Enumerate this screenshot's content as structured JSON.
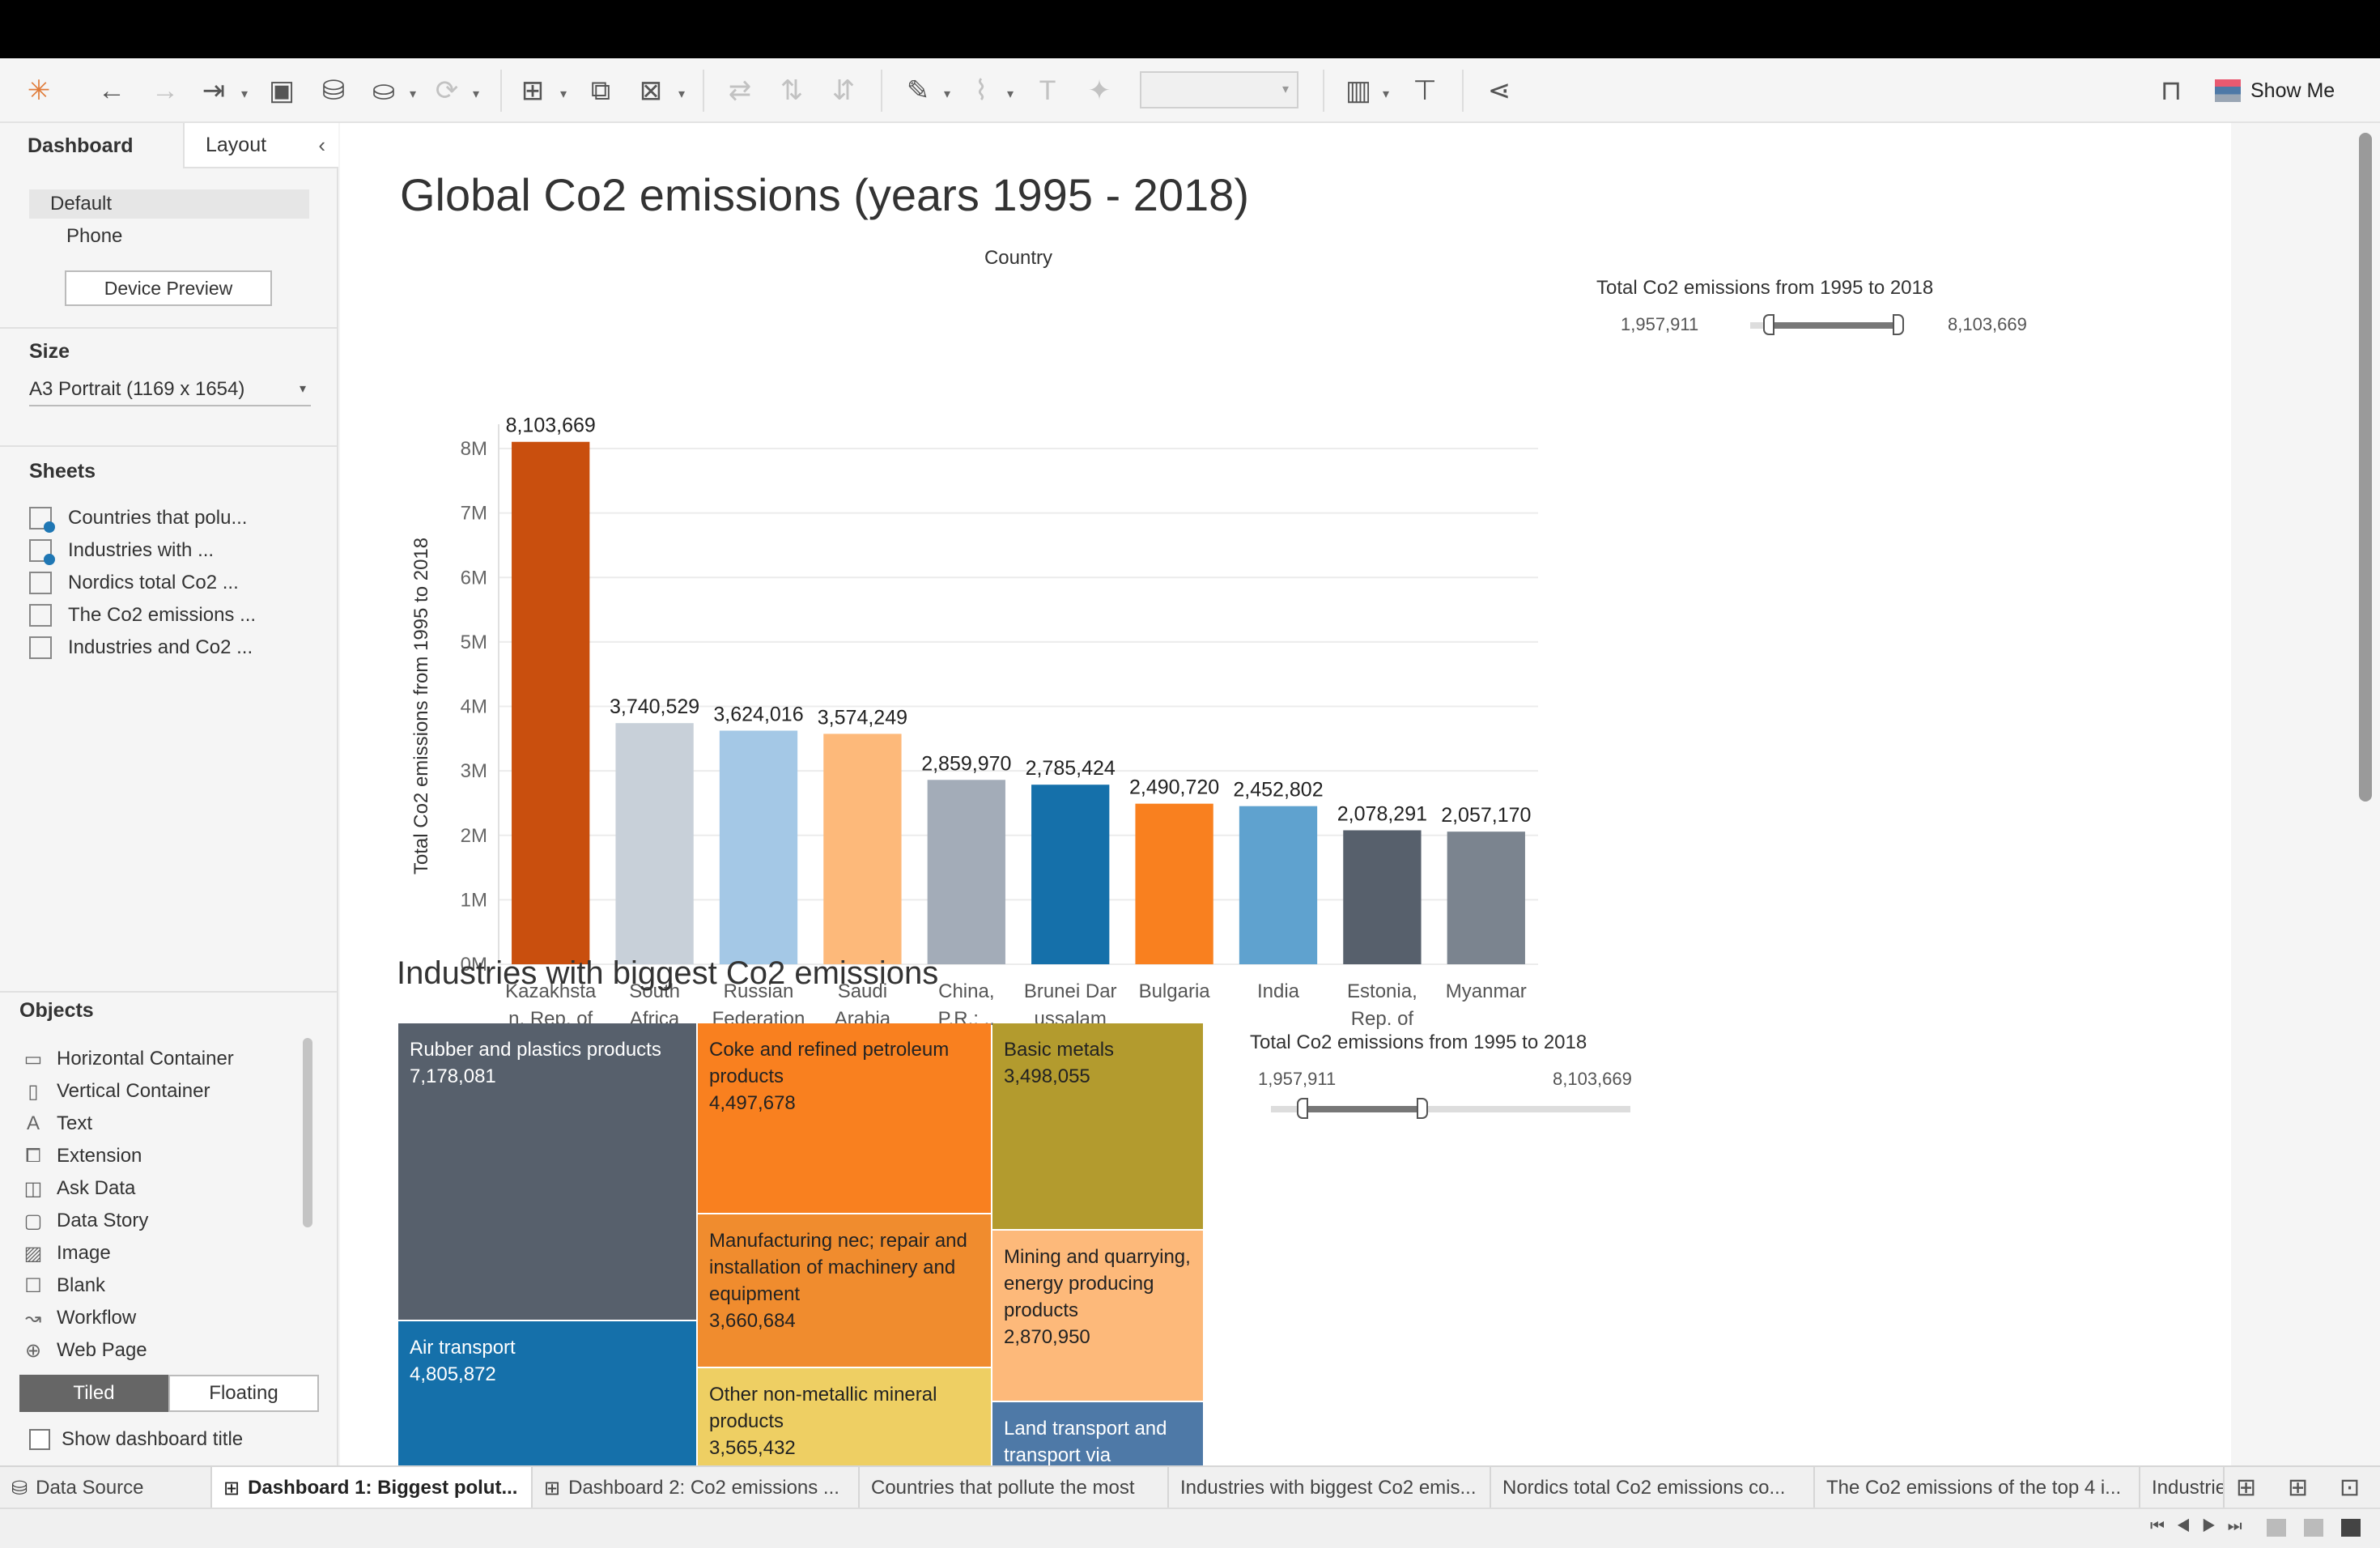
{
  "toolbar": {
    "show_me": "Show Me"
  },
  "sidebar": {
    "tabs": [
      "Dashboard",
      "Layout"
    ],
    "devices": [
      "Default",
      "Phone"
    ],
    "device_preview": "Device Preview",
    "size_label": "Size",
    "size_value": "A3 Portrait (1169 x 1654)",
    "sheets_label": "Sheets",
    "sheets": [
      "Countries that polu...",
      "Industries with ...",
      "Nordics total Co2 ...",
      "The Co2 emissions ...",
      "Industries and Co2 ..."
    ],
    "objects_label": "Objects",
    "objects": [
      "Horizontal Container",
      "Vertical Container",
      "Text",
      "Extension",
      "Ask Data",
      "Data Story",
      "Image",
      "Blank",
      "Workflow",
      "Web Page"
    ],
    "tiled": "Tiled",
    "floating": "Floating",
    "show_title": "Show dashboard title"
  },
  "dashboard": {
    "title": "Global Co2 emissions (years 1995 - 2018)",
    "subtitle": "Industries with biggest Co2 emissions"
  },
  "chart_data": [
    {
      "type": "bar",
      "title": "Country",
      "ylabel": "Total  Co2 emissions from 1995 to 2018",
      "categories": [
        [
          "Kazakhsta",
          "n, Rep. of"
        ],
        [
          "South",
          "Africa"
        ],
        [
          "Russian",
          "Federation"
        ],
        [
          "Saudi",
          "Arabia"
        ],
        [
          "China,",
          "P.R.: .."
        ],
        [
          "Brunei Dar",
          "ussalam"
        ],
        [
          "Bulgaria"
        ],
        [
          "India"
        ],
        [
          "Estonia,",
          "Rep. of"
        ],
        [
          "Myanmar"
        ]
      ],
      "values": [
        8103669,
        3740529,
        3624016,
        3574249,
        2859970,
        2785424,
        2490720,
        2452802,
        2078291,
        2057170
      ],
      "value_labels": [
        "8,103,669",
        "3,740,529",
        "3,624,016",
        "3,574,249",
        "2,859,970",
        "2,785,424",
        "2,490,720",
        "2,452,802",
        "2,078,291",
        "2,057,170"
      ],
      "colors": [
        "#c94f0e",
        "#c8d0d9",
        "#a4c8e6",
        "#fdb97a",
        "#a3acb8",
        "#1570aa",
        "#f9801f",
        "#5fa2cf",
        "#57606c",
        "#7b848f"
      ],
      "yticks": [
        "0M",
        "1M",
        "2M",
        "3M",
        "4M",
        "5M",
        "6M",
        "7M",
        "8M"
      ],
      "ylim": [
        0,
        8000000
      ],
      "grid": true
    },
    {
      "type": "treemap",
      "items": [
        {
          "name": "Rubber and plastics products",
          "value": "7,178,081",
          "color": "#57606c",
          "text": "#ffffff"
        },
        {
          "name": "Air transport",
          "value": "4,805,872",
          "color": "#1570aa",
          "text": "#ffffff"
        },
        {
          "name": "Coke and refined petroleum products",
          "value": "4,497,678",
          "color": "#f9801f",
          "text": "#222222"
        },
        {
          "name": "Manufacturing nec; repair and installation of machinery and equipment",
          "value": "3,660,684",
          "color": "#f08c2e",
          "text": "#222222"
        },
        {
          "name": "Other non-metallic mineral products",
          "value": "3,565,432",
          "color": "#eecf63",
          "text": "#222222"
        },
        {
          "name": "Basic metals",
          "value": "3,498,055",
          "color": "#b39b2e",
          "text": "#222222"
        },
        {
          "name": "Mining and quarrying, energy producing products",
          "value": "2,870,950",
          "color": "#fdb97a",
          "text": "#222222"
        },
        {
          "name": "Land transport and transport via",
          "value": "",
          "color": "#4e79a7",
          "text": "#ffffff"
        }
      ]
    }
  ],
  "filters": [
    {
      "title": "Total  Co2 emissions from 1995 to 2018",
      "min": "1,957,911",
      "max": "8,103,669"
    },
    {
      "title": "Total  Co2 emissions from 1995 to 2018",
      "min": "1,957,911",
      "max": "8,103,669"
    }
  ],
  "bottom_tabs": [
    "Data Source",
    "Dashboard 1: Biggest polut...",
    "Dashboard 2: Co2 emissions ...",
    "Countries that pollute the most",
    "Industries with biggest Co2 emis...",
    "Nordics total Co2 emissions co...",
    "The Co2 emissions of the top 4 i...",
    "Industrie"
  ]
}
